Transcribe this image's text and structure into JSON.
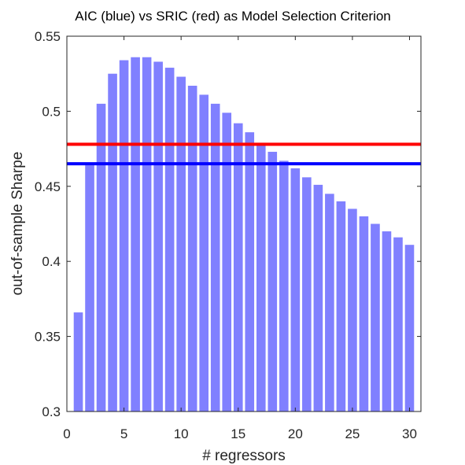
{
  "chart_data": {
    "type": "bar",
    "title": "AIC (blue) vs SRIC (red) as Model Selection Criterion",
    "xlabel": "# regressors",
    "ylabel": "out-of-sample Sharpe",
    "xlim": [
      0,
      31
    ],
    "ylim": [
      0.3,
      0.55
    ],
    "x_ticks": [
      0,
      5,
      10,
      15,
      20,
      25,
      30
    ],
    "x_tick_labels": [
      "0",
      "5",
      "10",
      "15",
      "20",
      "25",
      "30"
    ],
    "y_ticks": [
      0.3,
      0.35,
      0.4,
      0.45,
      0.5,
      0.55
    ],
    "y_tick_labels": [
      "0.3",
      "0.35",
      "0.4",
      "0.45",
      "0.5",
      "0.55"
    ],
    "grid": false,
    "bar_color": "#8080ff",
    "x": [
      1,
      2,
      3,
      4,
      5,
      6,
      7,
      8,
      9,
      10,
      11,
      12,
      13,
      14,
      15,
      16,
      17,
      18,
      19,
      20,
      21,
      22,
      23,
      24,
      25,
      26,
      27,
      28,
      29,
      30
    ],
    "values": [
      0.366,
      0.464,
      0.505,
      0.525,
      0.534,
      0.536,
      0.536,
      0.533,
      0.529,
      0.523,
      0.517,
      0.511,
      0.505,
      0.499,
      0.492,
      0.486,
      0.479,
      0.473,
      0.467,
      0.462,
      0.456,
      0.451,
      0.445,
      0.44,
      0.435,
      0.43,
      0.425,
      0.42,
      0.416,
      0.411
    ],
    "reference_lines": [
      {
        "value": 0.478,
        "color": "#ff0000"
      },
      {
        "value": 0.465,
        "color": "#0000ff"
      }
    ]
  }
}
